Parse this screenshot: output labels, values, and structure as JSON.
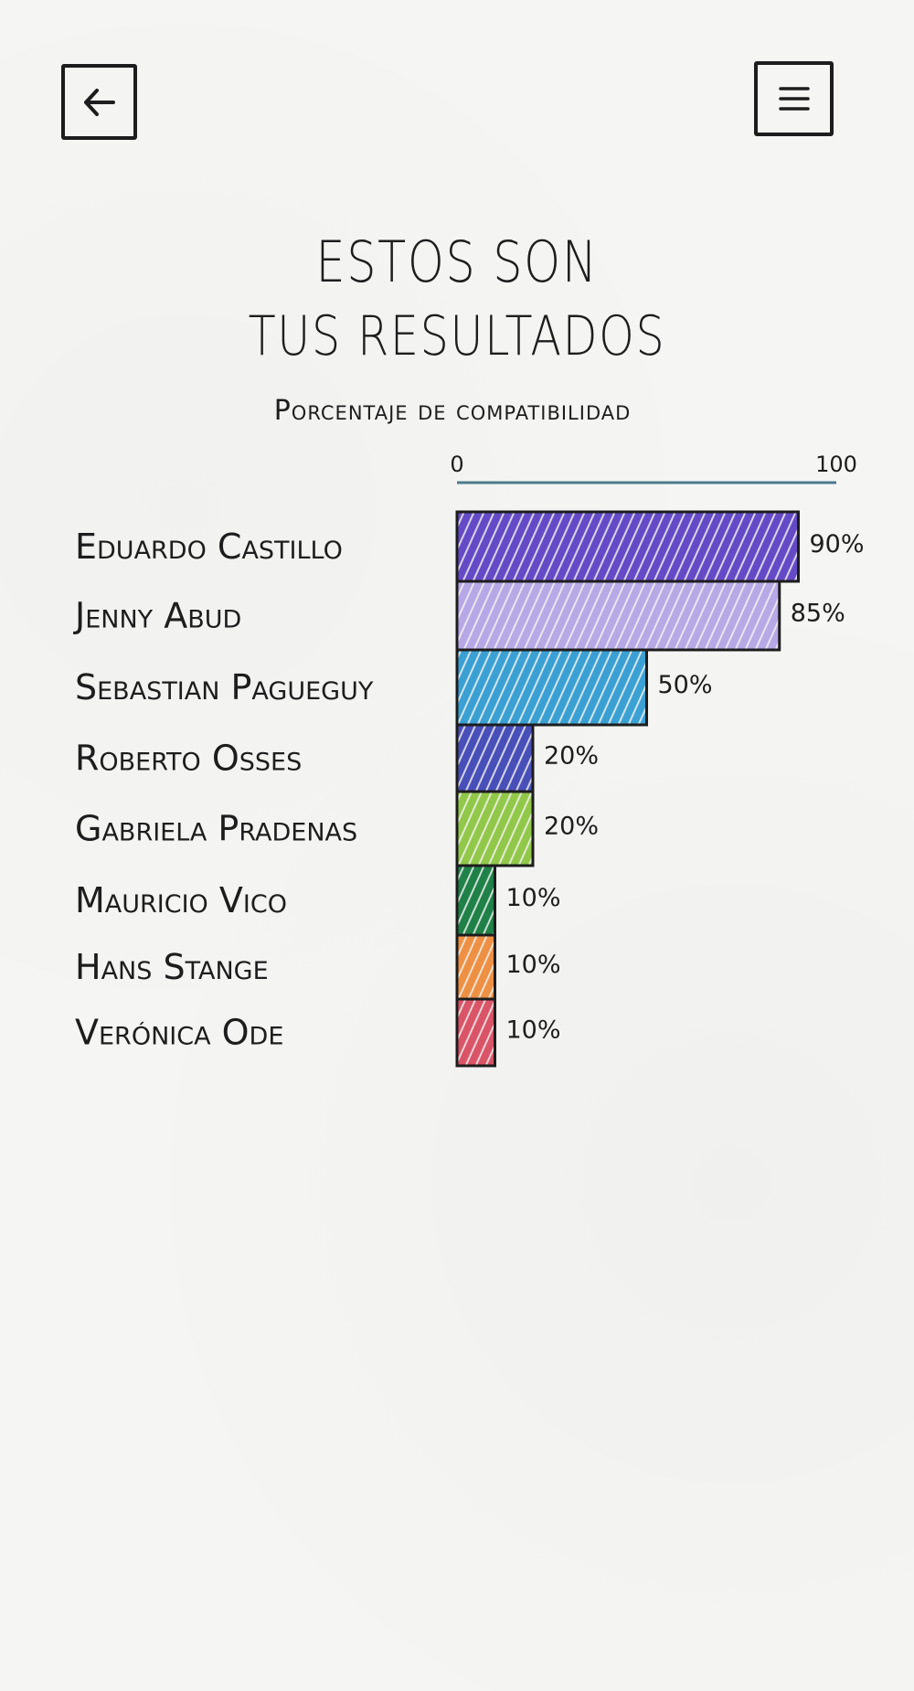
{
  "header": {
    "back_icon": "arrow-left-icon",
    "menu_icon": "hamburger-menu-icon"
  },
  "title": {
    "line1": "ESTOS SON",
    "line2": "TUS RESULTADOS"
  },
  "chart_data": {
    "type": "bar",
    "orientation": "horizontal",
    "title": "Porcentaje de compatibilidad",
    "xlim": [
      0,
      100
    ],
    "axis_ticks": [
      "0",
      "100"
    ],
    "axis_color": "#4a7a8c",
    "categories": [
      "Eduardo Castillo",
      "Jenny Abud",
      "Sebastian Pagueguy",
      "Roberto Osses",
      "Gabriela Pradenas",
      "Mauricio Vico",
      "Hans Stange",
      "Verónica Ode"
    ],
    "values": [
      90,
      85,
      50,
      20,
      20,
      10,
      10,
      10
    ],
    "value_labels": [
      "90%",
      "85%",
      "50%",
      "20%",
      "20%",
      "10%",
      "10%",
      "10%"
    ],
    "colors": [
      "#5b3fc4",
      "#b3a3e6",
      "#2f9bd3",
      "#3d44b5",
      "#8cc63f",
      "#117a3d",
      "#ee8a37",
      "#d94a5e"
    ]
  }
}
